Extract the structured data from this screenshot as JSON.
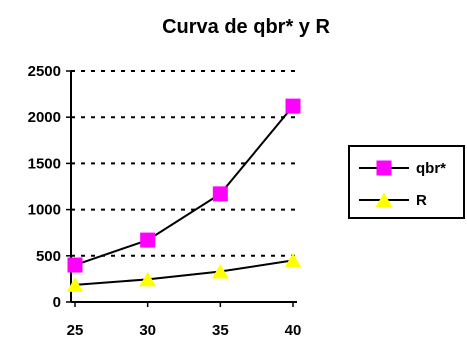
{
  "chart_data": {
    "type": "line",
    "title": "Curva de qbr* y R",
    "xlabel": "",
    "ylabel": "",
    "x": [
      25,
      30,
      35,
      40
    ],
    "x_ticks": [
      "25",
      "30",
      "35",
      "40"
    ],
    "y_ticks": [
      "0",
      "500",
      "1000",
      "1500",
      "2000",
      "2500"
    ],
    "ylim": [
      0,
      2500
    ],
    "grid": "horizontal-dotted",
    "legend_position": "right",
    "series": [
      {
        "name": "qbr*",
        "values": [
          400,
          670,
          1170,
          2120
        ],
        "marker": "square",
        "color": "#ff00ff"
      },
      {
        "name": "R",
        "values": [
          185,
          245,
          330,
          450
        ],
        "marker": "triangle",
        "color": "#ffff00"
      }
    ]
  }
}
